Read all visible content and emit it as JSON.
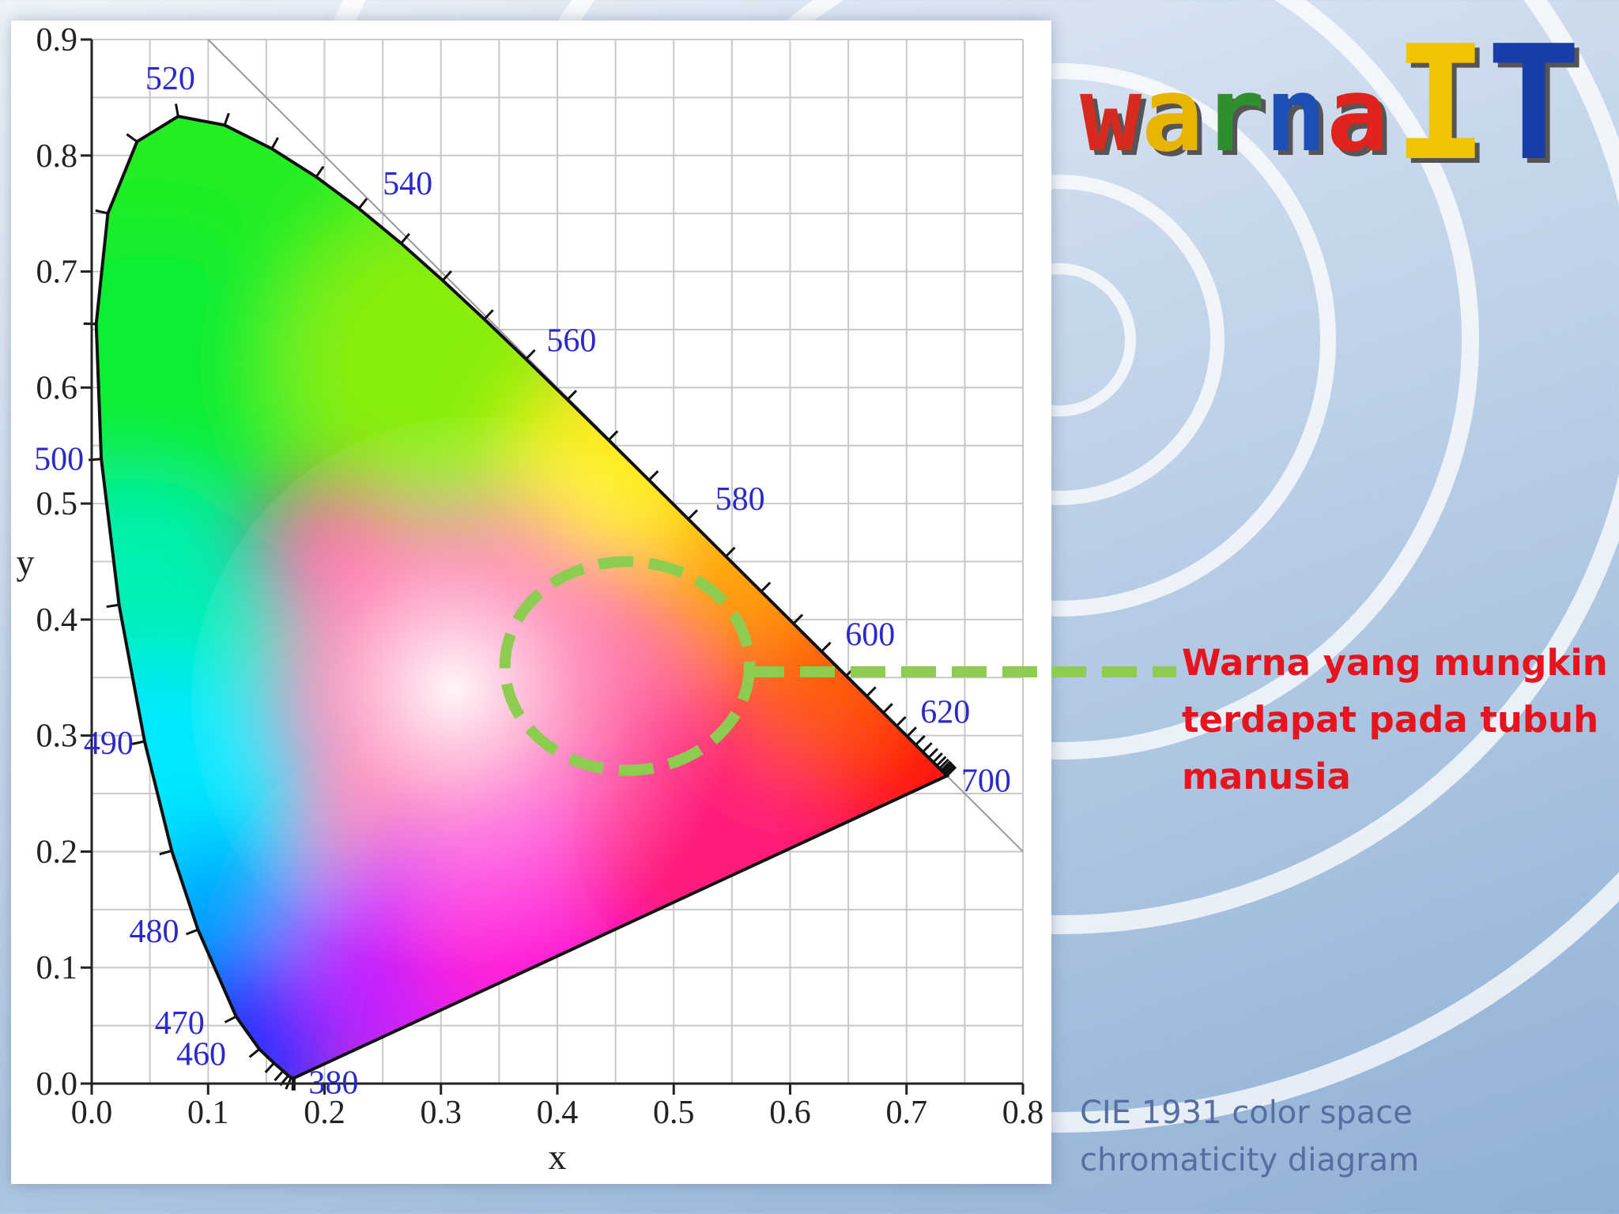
{
  "logo": {
    "text_lower": "warna",
    "text_upper": "IT",
    "colors": [
      "#d62a1e",
      "#e8b400",
      "#2f8f2f",
      "#1e4fb5",
      "#e0231c",
      "#f0c400",
      "#1a3ea8"
    ]
  },
  "annotation": {
    "lines": [
      "Warna yang mungkin",
      "terdapat pada tubuh",
      "manusia"
    ],
    "color": "#e6141e",
    "marker_color": "#8ccd50"
  },
  "caption": {
    "lines": [
      "CIE 1931 color space",
      "chromaticity diagram"
    ],
    "color": "#5570a0"
  },
  "chart_data": {
    "type": "chromaticity",
    "xlabel": "x",
    "ylabel": "y",
    "xlim": [
      0,
      0.8
    ],
    "ylim": [
      0,
      0.9
    ],
    "x_ticks": [
      "0.0",
      "0.1",
      "0.2",
      "0.3",
      "0.4",
      "0.5",
      "0.6",
      "0.7",
      "0.8"
    ],
    "y_ticks": [
      "0.0",
      "0.1",
      "0.2",
      "0.3",
      "0.4",
      "0.5",
      "0.6",
      "0.7",
      "0.8",
      "0.9"
    ],
    "grid": true,
    "spectral_locus": [
      [
        0.1741,
        0.005
      ],
      [
        0.173,
        0.005
      ],
      [
        0.1714,
        0.0051
      ],
      [
        0.1689,
        0.0069
      ],
      [
        0.1644,
        0.0109
      ],
      [
        0.1566,
        0.0177
      ],
      [
        0.144,
        0.0297
      ],
      [
        0.1241,
        0.0578
      ],
      [
        0.0913,
        0.1327
      ],
      [
        0.0687,
        0.2007
      ],
      [
        0.0454,
        0.295
      ],
      [
        0.0235,
        0.4127
      ],
      [
        0.0082,
        0.5384
      ],
      [
        0.0039,
        0.6548
      ],
      [
        0.0139,
        0.7502
      ],
      [
        0.0389,
        0.812
      ],
      [
        0.0743,
        0.8338
      ],
      [
        0.1142,
        0.8262
      ],
      [
        0.1547,
        0.8059
      ],
      [
        0.1929,
        0.7816
      ],
      [
        0.2296,
        0.7543
      ],
      [
        0.2658,
        0.7243
      ],
      [
        0.3016,
        0.6923
      ],
      [
        0.3373,
        0.6589
      ],
      [
        0.3731,
        0.6245
      ],
      [
        0.4087,
        0.5896
      ],
      [
        0.4441,
        0.5547
      ],
      [
        0.4788,
        0.5202
      ],
      [
        0.5125,
        0.4866
      ],
      [
        0.5448,
        0.4544
      ],
      [
        0.5752,
        0.4242
      ],
      [
        0.6029,
        0.3965
      ],
      [
        0.627,
        0.3725
      ],
      [
        0.6482,
        0.3514
      ],
      [
        0.6658,
        0.334
      ],
      [
        0.6801,
        0.3197
      ],
      [
        0.6915,
        0.3083
      ],
      [
        0.7006,
        0.2993
      ],
      [
        0.7079,
        0.292
      ],
      [
        0.714,
        0.2859
      ],
      [
        0.719,
        0.2809
      ],
      [
        0.723,
        0.277
      ],
      [
        0.726,
        0.274
      ],
      [
        0.7283,
        0.2717
      ],
      [
        0.73,
        0.27
      ],
      [
        0.7311,
        0.2689
      ],
      [
        0.732,
        0.268
      ],
      [
        0.7334,
        0.2666
      ],
      [
        0.7347,
        0.2653
      ]
    ],
    "wavelength_labels": [
      {
        "label": "380",
        "x": 0.1741,
        "y": 0.005
      },
      {
        "label": "460",
        "x": 0.144,
        "y": 0.0297
      },
      {
        "label": "470",
        "x": 0.1241,
        "y": 0.0578
      },
      {
        "label": "480",
        "x": 0.0913,
        "y": 0.1327
      },
      {
        "label": "490",
        "x": 0.0454,
        "y": 0.295
      },
      {
        "label": "500",
        "x": 0.0082,
        "y": 0.5384
      },
      {
        "label": "520",
        "x": 0.0743,
        "y": 0.8338
      },
      {
        "label": "540",
        "x": 0.2296,
        "y": 0.7543
      },
      {
        "label": "560",
        "x": 0.3731,
        "y": 0.6245
      },
      {
        "label": "580",
        "x": 0.5125,
        "y": 0.4866
      },
      {
        "label": "600",
        "x": 0.627,
        "y": 0.3725
      },
      {
        "label": "620",
        "x": 0.6915,
        "y": 0.3083
      },
      {
        "label": "700",
        "x": 0.7347,
        "y": 0.2653
      }
    ],
    "highlight_region": {
      "center_x": 0.46,
      "center_y": 0.36,
      "radius_x": 0.105,
      "radius_y": 0.09
    }
  }
}
